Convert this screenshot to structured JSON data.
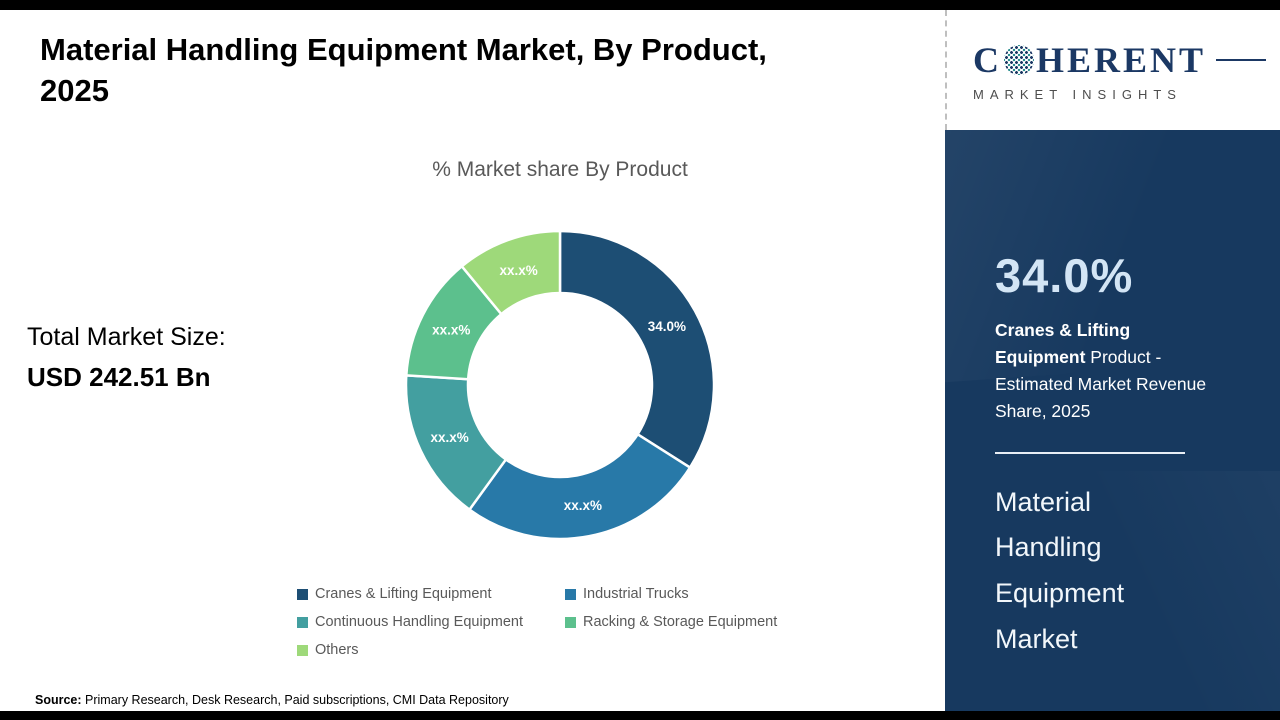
{
  "page": {
    "title": "Material Handling Equipment Market, By Product, 2025",
    "total_market_label": "Total Market Size:",
    "total_market_value": "USD 242.51 Bn",
    "source_label": "Source:",
    "source_text": " Primary Research, Desk Research, Paid subscriptions, CMI Data Repository"
  },
  "chart_data": {
    "type": "pie",
    "subtype": "donut",
    "title": "% Market share By Product",
    "categories": [
      "Cranes & Lifting Equipment",
      "Industrial Trucks",
      "Continuous Handling Equipment",
      "Racking & Storage Equipment",
      "Others"
    ],
    "values": [
      34.0,
      26,
      16,
      13,
      11
    ],
    "labels": [
      "34.0%",
      "xx.x%",
      "xx.x%",
      "xx.x%",
      "xx.x%"
    ],
    "colors": [
      "#1d4e74",
      "#2879a8",
      "#439fa0",
      "#5cc08d",
      "#9ed97a"
    ],
    "legend_position": "bottom",
    "note": "Only the 34.0% share for Cranes & Lifting Equipment is disclosed; other shares are masked as xx.x%"
  },
  "sidebar": {
    "logo_line1_left": "C",
    "logo_line1_right": "HERENT",
    "logo_line2": "MARKET INSIGHTS",
    "stat_value": "34.0%",
    "stat_bold": "Cranes & Lifting Equipment",
    "stat_rest": " Product - Estimated Market Revenue Share, 2025",
    "market_name": "Material Handling Equipment Market",
    "panel_color": "#17395f"
  }
}
